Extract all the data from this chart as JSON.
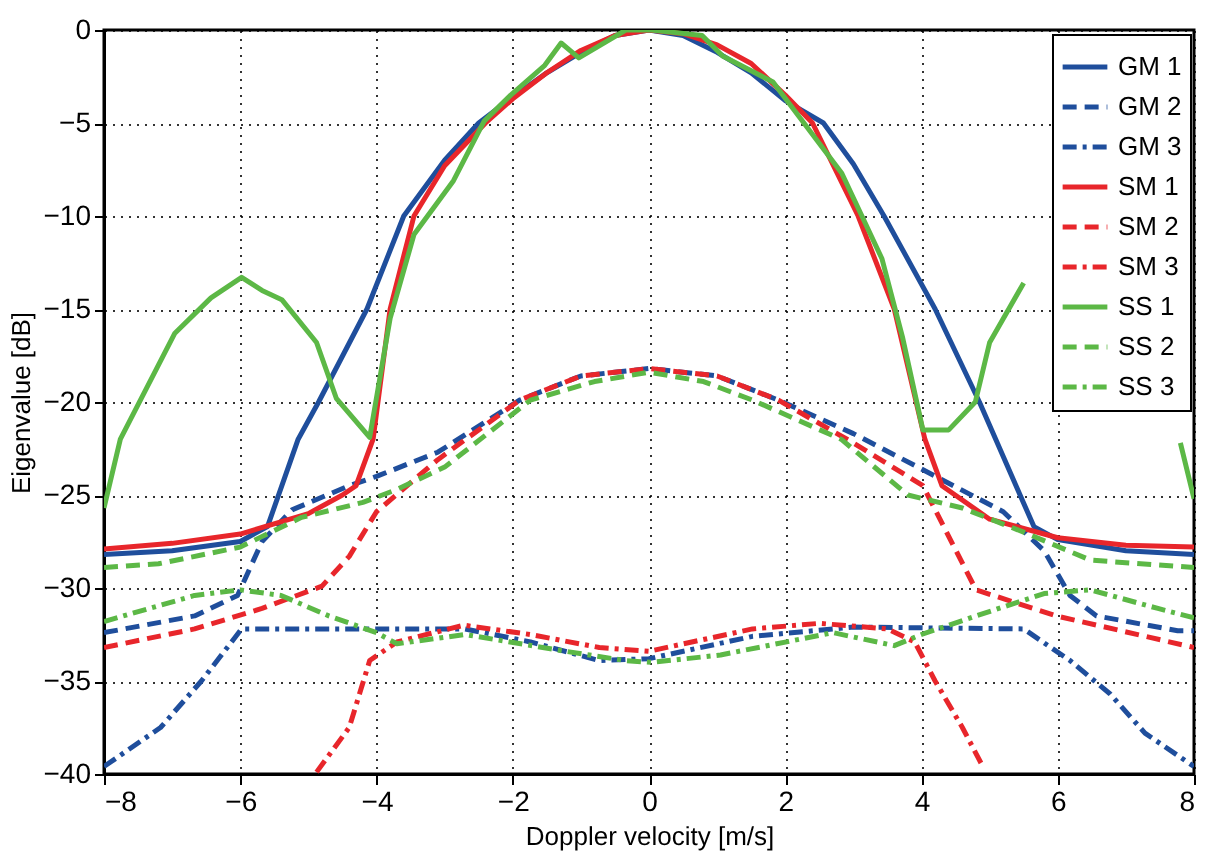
{
  "chart_data": {
    "type": "line",
    "xlabel": "Doppler velocity [m/s]",
    "ylabel": "Eigenvalue [dB]",
    "xlim": [
      -8,
      8
    ],
    "xticks": [
      -8,
      -6,
      -4,
      -2,
      0,
      2,
      4,
      6,
      8
    ],
    "ylim": [
      -40,
      0
    ],
    "yticks": [
      -40,
      -35,
      -30,
      -25,
      -20,
      -15,
      -10,
      -5,
      0
    ],
    "grid": true,
    "legend": "top right",
    "series": [
      {
        "name": "GM 1",
        "color": "#1f4e9c",
        "line_style": "solid",
        "x": [
          -8,
          -7,
          -6,
          -5.6,
          -5.15,
          -4.85,
          -4.14,
          -3.6,
          -3,
          -2.5,
          -2,
          -1.5,
          -1,
          -0.5,
          0,
          0.5,
          1,
          1.5,
          2,
          2.56,
          3,
          3.45,
          4.2,
          4.85,
          5.65,
          6,
          7,
          8
        ],
        "values": [
          -28.2,
          -28.0,
          -27.5,
          -26.7,
          -22,
          -20,
          -15,
          -10,
          -7,
          -5,
          -3.6,
          -2.3,
          -1.2,
          -0.3,
          0,
          -0.3,
          -1.2,
          -2.3,
          -3.8,
          -5,
          -7.2,
          -10,
          -15,
          -20,
          -26.7,
          -27.4,
          -28,
          -28.2
        ]
      },
      {
        "name": "GM 2",
        "color": "#1f4e9c",
        "line_style": "dashed",
        "x": [
          -8,
          -6.67,
          -6.04,
          -5.68,
          -5.24,
          -4.4,
          -4,
          -3.1,
          -1.9,
          -1,
          0,
          1,
          1.9,
          3,
          4,
          5.2,
          5.8,
          6.18,
          6.57,
          7.76,
          8
        ],
        "values": [
          -32.4,
          -31.5,
          -30.4,
          -27.5,
          -25.8,
          -24.5,
          -24,
          -22.7,
          -19.9,
          -18.6,
          -18.2,
          -18.6,
          -19.9,
          -21.7,
          -23.6,
          -25.9,
          -28,
          -30.4,
          -31.5,
          -32.3,
          -32.3
        ]
      },
      {
        "name": "GM 3",
        "color": "#1f4e9c",
        "line_style": "dashdot",
        "x": [
          -8,
          -7.17,
          -6.57,
          -5.98,
          -5.4,
          -4,
          -2.7,
          -1.74,
          -0.73,
          0,
          1.52,
          3,
          5.5,
          6.18,
          6.77,
          7.28,
          8
        ],
        "values": [
          -39.6,
          -37.5,
          -35,
          -32.2,
          -32.2,
          -32.2,
          -32.2,
          -32.9,
          -33.9,
          -33.8,
          -32.6,
          -32.1,
          -32.2,
          -33.9,
          -35.7,
          -37.8,
          -39.6
        ]
      },
      {
        "name": "SM 1",
        "color": "#e8262b",
        "line_style": "solid",
        "x": [
          -8,
          -7,
          -6,
          -5,
          -4.5,
          -4.3,
          -4.05,
          -3.8,
          -3.45,
          -3,
          -2.4,
          -2,
          -1.5,
          -1,
          -0.5,
          0,
          0.5,
          1,
          1.5,
          2,
          2.4,
          3.07,
          3.6,
          4.05,
          4.3,
          5,
          6,
          7,
          8
        ],
        "values": [
          -27.9,
          -27.6,
          -27.1,
          -26,
          -25,
          -24.5,
          -22,
          -15,
          -10,
          -7.3,
          -5,
          -3.7,
          -2.3,
          -1.1,
          -0.3,
          0,
          -0.2,
          -0.8,
          -1.8,
          -3.5,
          -5,
          -10,
          -15,
          -22,
          -24.5,
          -26.3,
          -27.3,
          -27.7,
          -27.8
        ]
      },
      {
        "name": "SM 2",
        "color": "#e8262b",
        "line_style": "dashed",
        "x": [
          -8,
          -6.67,
          -5.68,
          -4.8,
          -4.4,
          -4,
          -3.1,
          -1.9,
          -1,
          0,
          1,
          1.9,
          3,
          4.02,
          4.8,
          5.98,
          8
        ],
        "values": [
          -33.2,
          -32.2,
          -31.1,
          -29.9,
          -28.3,
          -25.9,
          -23.1,
          -19.9,
          -18.6,
          -18.2,
          -18.6,
          -19.9,
          -22.2,
          -24.5,
          -30.1,
          -31.5,
          -33.2
        ]
      },
      {
        "name": "SM 3",
        "color": "#e8262b",
        "line_style": "dashdot",
        "x": [
          -4.88,
          -4.4,
          -4.1,
          -3.7,
          -2.72,
          -1.74,
          -0.73,
          0,
          1.52,
          2.5,
          3.5,
          3.9,
          4.2,
          4.6,
          4.9
        ],
        "values": [
          -39.9,
          -37.5,
          -33.9,
          -32.9,
          -32.0,
          -32.5,
          -33.2,
          -33.4,
          -32.2,
          -31.9,
          -32.2,
          -32.9,
          -35,
          -37.5,
          -39.6
        ]
      },
      {
        "name": "SS 1",
        "color": "#5cb846",
        "line_style": "solid",
        "x": [
          -8,
          -7.76,
          -6.96,
          -6.43,
          -5.98,
          -5.68,
          -5.39,
          -4.88,
          -4.59,
          -4.1,
          -3.8,
          -3.45,
          -2.87,
          -2.42,
          -2.03,
          -1.53,
          -1.29,
          -1.03,
          -0.34,
          0.04,
          0.78,
          1.08,
          1.82,
          2.83,
          3.42,
          3.72,
          4.02,
          4.4,
          4.79,
          5.0,
          5.5,
          5.65,
          7.58,
          7.8,
          8
        ],
        "values": [
          -25.7,
          -22,
          -16.3,
          -14.4,
          -13.3,
          -14.0,
          -14.5,
          -16.8,
          -19.8,
          -21.9,
          -15.5,
          -11,
          -8.1,
          -4.9,
          -3.5,
          -1.9,
          -0.7,
          -1.5,
          0,
          0,
          -0.3,
          -1.4,
          -2.8,
          -7.7,
          -12.3,
          -16.5,
          -21.5,
          -21.5,
          -20,
          -16.8,
          -13.6,
          null,
          null,
          -22.2,
          -25.2
        ]
      },
      {
        "name": "SS 2",
        "color": "#5cb846",
        "line_style": "dashed",
        "x": [
          -8,
          -7.2,
          -6,
          -5.1,
          -4.2,
          -3.7,
          -3.0,
          -1.74,
          -0.8,
          0,
          0.8,
          1.52,
          2.82,
          3.8,
          4.6,
          5.5,
          6.48,
          8
        ],
        "values": [
          -28.9,
          -28.7,
          -27.8,
          -26.2,
          -25.4,
          -24.7,
          -23.5,
          -19.9,
          -18.9,
          -18.4,
          -18.9,
          -19.9,
          -22,
          -25,
          -25.7,
          -27,
          -28.5,
          -28.9
        ]
      },
      {
        "name": "SS 3",
        "color": "#5cb846",
        "line_style": "dashdot",
        "x": [
          -8,
          -6.67,
          -6,
          -5.4,
          -4.7,
          -4.0,
          -3.7,
          -2.7,
          -1.23,
          -0.35,
          0.04,
          1.05,
          2.7,
          3.6,
          4.0,
          4.8,
          5.8,
          6.48,
          7.47,
          8
        ],
        "values": [
          -31.8,
          -30.4,
          -30.1,
          -30.4,
          -31.5,
          -32.4,
          -33,
          -32.5,
          -33.4,
          -33.9,
          -34,
          -33.6,
          -32.4,
          -33.1,
          -32.5,
          -31.5,
          -30.3,
          -30.1,
          -31.1,
          -31.6
        ]
      }
    ]
  }
}
